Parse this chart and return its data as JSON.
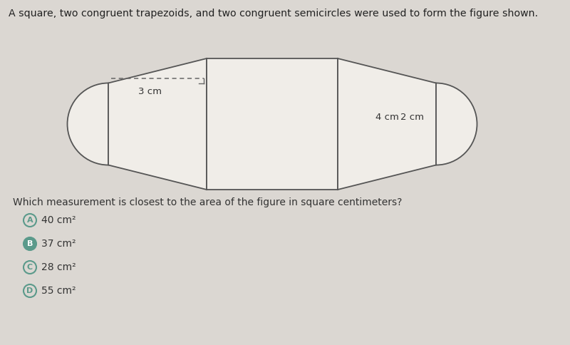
{
  "title": "A square, two congruent trapezoids, and two congruent semicircles were used to form the figure shown.",
  "question": "Which measurement is closest to the area of the figure in square centimeters?",
  "choices": [
    {
      "label": "A",
      "text": "40 cm²",
      "highlighted": false
    },
    {
      "label": "B",
      "text": "37 cm²",
      "highlighted": true
    },
    {
      "label": "C",
      "text": "28 cm²",
      "highlighted": false
    },
    {
      "label": "D",
      "text": "55 cm²",
      "highlighted": false
    }
  ],
  "bg_color": "#dbd7d2",
  "fig_fill": "#f0ede8",
  "fig_edge": "#555555",
  "label_3cm": "3 cm",
  "label_4cm": "4 cm",
  "label_2cm": "2 cm",
  "circle_color": "#5b9a8b",
  "text_color": "#333333",
  "title_color": "#222222"
}
